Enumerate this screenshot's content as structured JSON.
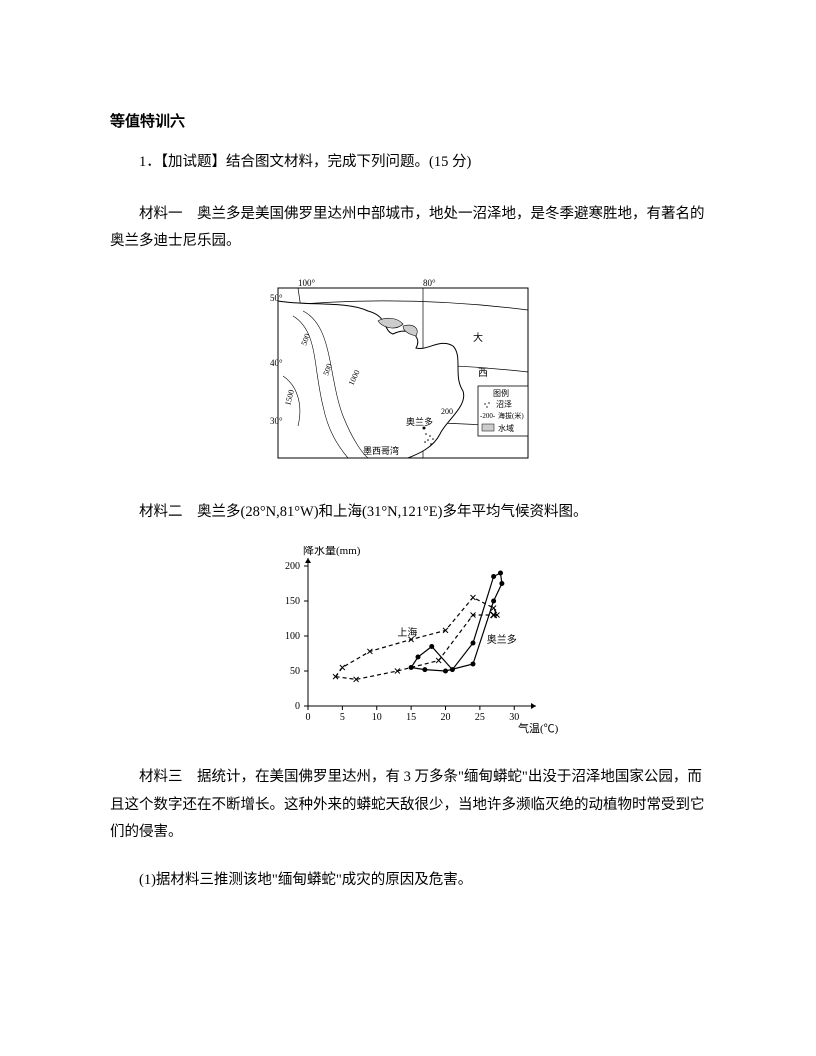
{
  "doc": {
    "title": "等值特训六",
    "question_intro": "1．【加试题】结合图文材料，完成下列问题。(15 分)",
    "material1": "材料一　奥兰多是美国佛罗里达州中部城市，地处一沼泽地，是冬季避寒胜地，有著名的奥兰多迪士尼乐园。",
    "material2": "材料二　奥兰多(28°N,81°W)和上海(31°N,121°E)多年平均气候资料图。",
    "material3": "材料三　据统计，在美国佛罗里达州，有 3 万多条\"缅甸蟒蛇\"出没于沼泽地国家公园，而且这个数字还在不断增长。这种外来的蟒蛇天敌很少，当地许多濒临灭绝的动植物时常受到它们的侵害。",
    "sub_q1": "(1)据材料三推测该地\"缅甸蟒蛇\"成灾的原因及危害。"
  },
  "map": {
    "border_color": "#000000",
    "border_width": 1,
    "bg_color": "#ffffff",
    "lon_labels": [
      "100°",
      "80°"
    ],
    "lat_labels": [
      "50°",
      "40°",
      "30°"
    ],
    "lat_positions": [
      20,
      80,
      145
    ],
    "lon_positions": [
      30,
      155
    ],
    "contour_labels": [
      "500",
      "500",
      "1000",
      "1500",
      "200"
    ],
    "city_label": "奥兰多",
    "gulf_label": "墨西哥湾",
    "ocean_label1": "大",
    "ocean_label2": "西",
    "ocean_label3": "洋",
    "legend": {
      "title": "图例",
      "swamp": "沼泽",
      "elevation": "海拔(米)",
      "elevation_val": "-200-",
      "water": "水域"
    },
    "text_fontsize": 9,
    "stroke_color": "#000000"
  },
  "chart": {
    "y_label": "降水量(mm)",
    "x_label": "气温(℃)",
    "y_ticks": [
      0,
      50,
      100,
      150,
      200
    ],
    "x_ticks": [
      0,
      5,
      10,
      15,
      20,
      25,
      30
    ],
    "y_range": [
      0,
      200
    ],
    "x_range": [
      0,
      32
    ],
    "axis_color": "#000000",
    "axis_width": 1,
    "grid_on": false,
    "fontsize": 10,
    "label_fontsize": 11,
    "shanghai": {
      "label": "上海",
      "line_style": "dashed",
      "marker": "cross",
      "color": "#000000",
      "data": [
        {
          "t": 4,
          "p": 42
        },
        {
          "t": 5,
          "p": 55
        },
        {
          "t": 9,
          "p": 78
        },
        {
          "t": 15,
          "p": 95
        },
        {
          "t": 20,
          "p": 108
        },
        {
          "t": 24,
          "p": 155
        },
        {
          "t": 27,
          "p": 140
        },
        {
          "t": 27.5,
          "p": 130
        },
        {
          "t": 24,
          "p": 130
        },
        {
          "t": 19,
          "p": 65
        },
        {
          "t": 13,
          "p": 50
        },
        {
          "t": 7,
          "p": 38
        }
      ]
    },
    "orlando": {
      "label": "奥兰多",
      "line_style": "solid",
      "marker": "circle",
      "color": "#000000",
      "data": [
        {
          "t": 15,
          "p": 55
        },
        {
          "t": 16,
          "p": 70
        },
        {
          "t": 18,
          "p": 85
        },
        {
          "t": 21,
          "p": 52
        },
        {
          "t": 24,
          "p": 90
        },
        {
          "t": 27,
          "p": 185
        },
        {
          "t": 28,
          "p": 190
        },
        {
          "t": 28.2,
          "p": 175
        },
        {
          "t": 27,
          "p": 150
        },
        {
          "t": 24,
          "p": 60
        },
        {
          "t": 20,
          "p": 50
        },
        {
          "t": 17,
          "p": 52
        }
      ]
    },
    "extra_marker": {
      "t": 27,
      "p": 130,
      "style": "x"
    }
  }
}
